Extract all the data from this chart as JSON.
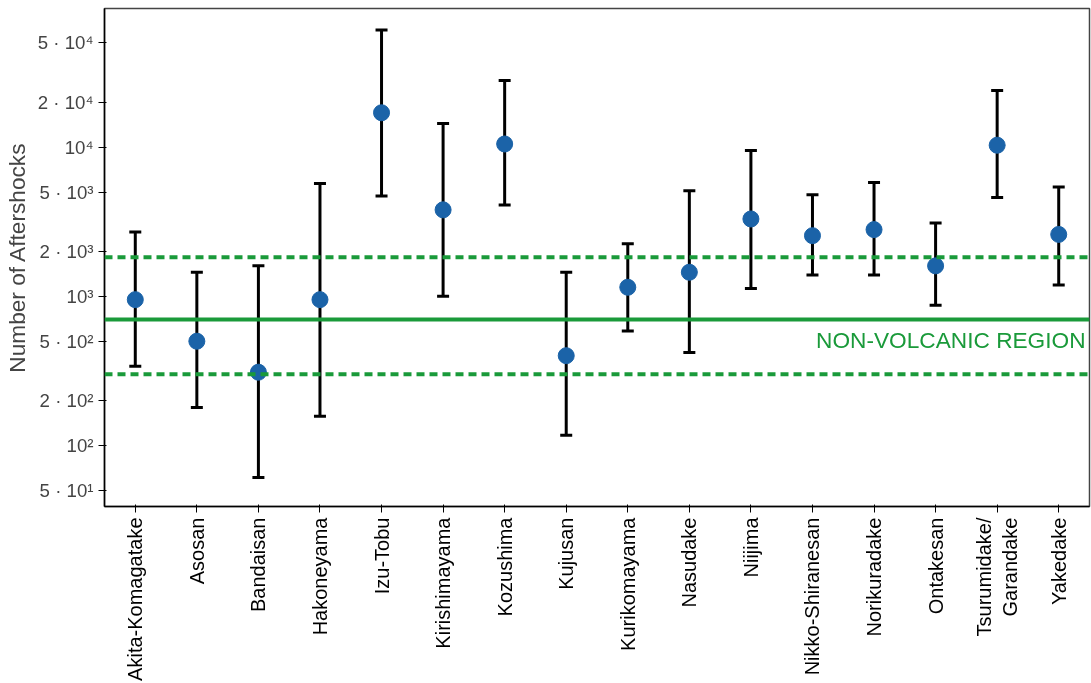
{
  "chart_data": {
    "type": "scatter",
    "ylabel": "Number of Aftershocks",
    "categories": [
      "Akita-Komagatake",
      "Asosan",
      "Bandaisan",
      "Hakoneyama",
      "Izu-Tobu",
      "Kirishimayama",
      "Kozushima",
      "Kujusan",
      "Kurikomayama",
      "Nasudake",
      "Niijima",
      "Nikko-Shiranesan",
      "Norikuradake",
      "Ontakesan",
      "Tsurumidake/\nGarandake",
      "Yakedake"
    ],
    "series": [
      {
        "color": "#1b63a8",
        "values": [
          950,
          500,
          310,
          950,
          17000,
          3800,
          10500,
          400,
          1150,
          1450,
          3300,
          2550,
          2800,
          1600,
          10300,
          2600
        ],
        "errors": [
          [
            340,
            2700
          ],
          [
            180,
            1450
          ],
          [
            61,
            1600
          ],
          [
            157,
            5700
          ],
          [
            4700,
            61000
          ],
          [
            1000,
            14400
          ],
          [
            4100,
            28000
          ],
          [
            117,
            1450
          ],
          [
            585,
            2250
          ],
          [
            420,
            5100
          ],
          [
            1130,
            9500
          ],
          [
            1390,
            4800
          ],
          [
            1390,
            5800
          ],
          [
            870,
            3100
          ],
          [
            4600,
            24000
          ],
          [
            1190,
            5400
          ]
        ]
      }
    ],
    "log": true,
    "ylim": [
      39,
      85000
    ],
    "yticks": [
      {
        "value": 50,
        "label": "5 · 10¹"
      },
      {
        "value": 100,
        "label": "10²"
      },
      {
        "value": 200,
        "label": "2 · 10²"
      },
      {
        "value": 500,
        "label": "5 · 10²"
      },
      {
        "value": 1000,
        "label": "10³"
      },
      {
        "value": 2000,
        "label": "2 · 10³"
      },
      {
        "value": 5000,
        "label": "5 · 10³"
      },
      {
        "value": 10000,
        "label": "10⁴"
      },
      {
        "value": 20000,
        "label": "2 · 10⁴"
      },
      {
        "value": 50000,
        "label": "5 · 10⁴"
      }
    ],
    "ref_lines": [
      {
        "axis": "y",
        "value": 700,
        "label": "NON-VOLCANIC REGION",
        "color": "#1a9a3a",
        "line_style": "solid"
      },
      {
        "axis": "y",
        "value": 1830,
        "label": null,
        "color": "#1a9a3a",
        "line_style": "dashed"
      },
      {
        "axis": "y",
        "value": 300,
        "label": null,
        "color": "#1a9a3a",
        "line_style": "dashed"
      }
    ],
    "grid": false,
    "marker": "circle"
  }
}
